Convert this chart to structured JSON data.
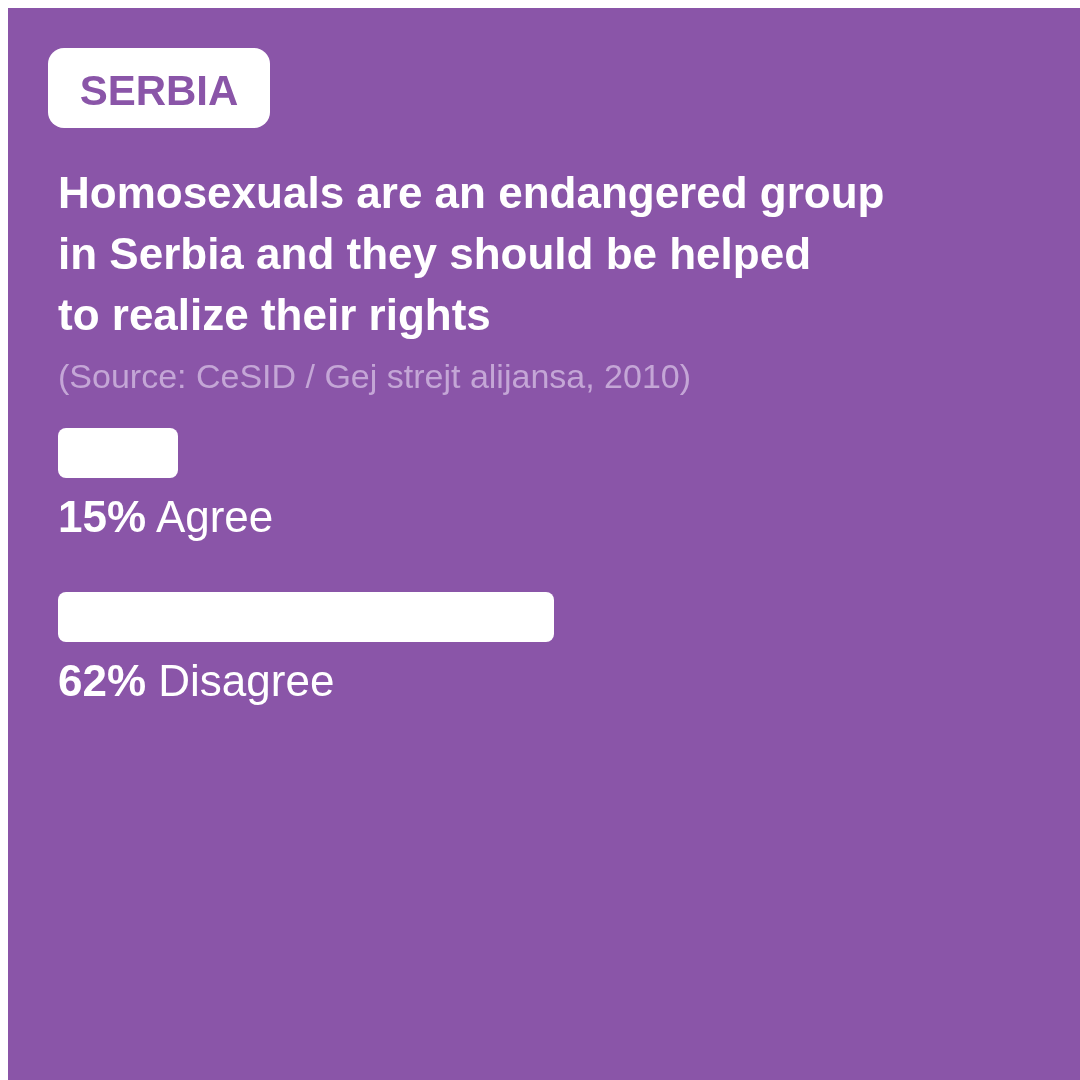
{
  "chart_data": {
    "type": "bar",
    "orientation": "horizontal",
    "title": "Homosexuals are an endangered group in Serbia and they should be helped to realize their rights",
    "annotations": [
      "SERBIA",
      "(Source: CeSID / Gej strejt alijansa, 2010)"
    ],
    "categories": [
      "Agree",
      "Disagree"
    ],
    "values": [
      15,
      62
    ],
    "value_labels": [
      "15%",
      "62%"
    ],
    "color": "#ffffff"
  }
}
